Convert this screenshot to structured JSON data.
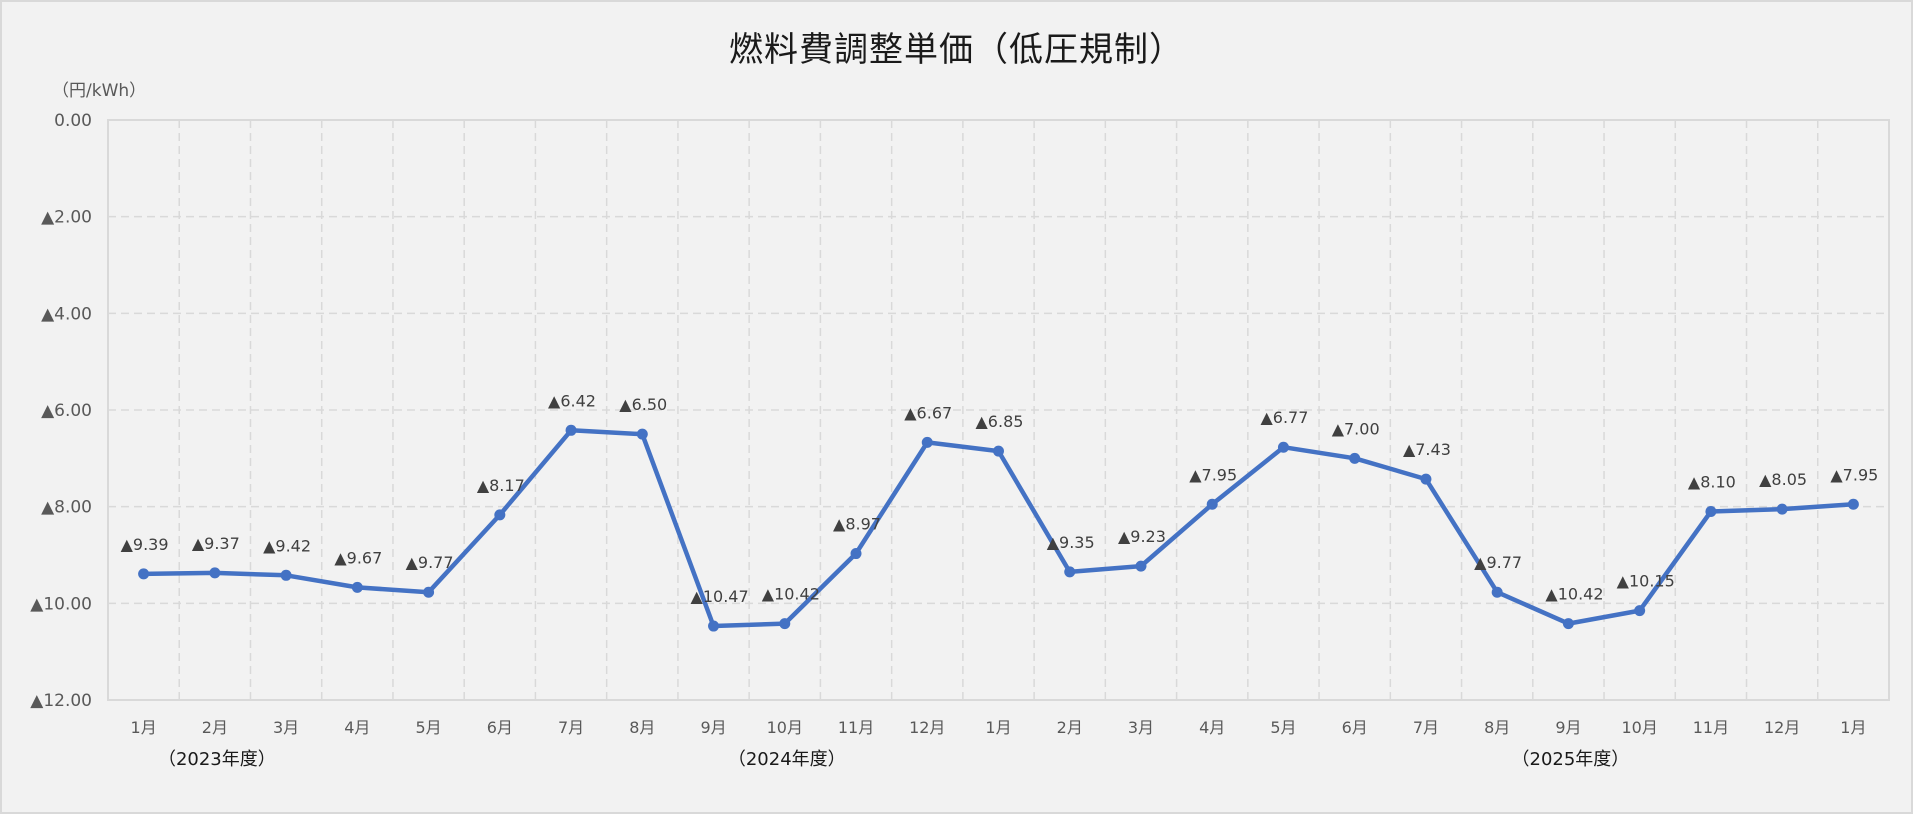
{
  "chart_data": {
    "type": "line",
    "title": "燃料費調整単価（低圧規制）",
    "ylabel": "（円/kWh）",
    "xlabel": "",
    "ylim": [
      0,
      12
    ],
    "y_inverted": true,
    "y_ticks": [
      "0.00",
      "▲2.00",
      "▲4.00",
      "▲6.00",
      "▲8.00",
      "▲10.00",
      "▲12.00"
    ],
    "grid": true,
    "legend": null,
    "categories": [
      "1月",
      "2月",
      "3月",
      "4月",
      "5月",
      "6月",
      "7月",
      "8月",
      "9月",
      "10月",
      "11月",
      "12月",
      "1月",
      "2月",
      "3月",
      "4月",
      "5月",
      "6月",
      "7月",
      "8月",
      "9月",
      "10月",
      "11月",
      "12月",
      "1月"
    ],
    "fiscal_year_labels": [
      {
        "label": "（2023年度）",
        "at_index": 1
      },
      {
        "label": "（2024年度）",
        "at_index": 9
      },
      {
        "label": "（2025年度）",
        "at_index": 20
      }
    ],
    "series": [
      {
        "name": "燃料費調整単価",
        "color": "#4472c4",
        "values": [
          -9.39,
          -9.37,
          -9.42,
          -9.67,
          -9.77,
          -8.17,
          -6.42,
          -6.5,
          -10.47,
          -10.42,
          -8.97,
          -6.67,
          -6.85,
          -9.35,
          -9.23,
          -7.95,
          -6.77,
          -7.0,
          -7.43,
          -9.77,
          -10.42,
          -10.15,
          -8.1,
          -8.05,
          -7.95
        ],
        "data_labels": [
          "▲9.39",
          "▲9.37",
          "▲9.42",
          "▲9.67",
          "▲9.77",
          "▲8.17",
          "▲6.42",
          "▲6.50",
          "▲10.47",
          "▲10.42",
          "▲8.97",
          "▲6.67",
          "▲6.85",
          "▲9.35",
          "▲9.23",
          "▲7.95",
          "▲6.77",
          "▲7.00",
          "▲7.43",
          "▲9.77",
          "▲10.42",
          "▲10.15",
          "▲8.10",
          "▲8.05",
          "▲7.95"
        ]
      }
    ]
  },
  "colors": {
    "background": "#f2f2f2",
    "line": "#4472c4",
    "grid": "#d9d9d9",
    "text": "#595959"
  }
}
